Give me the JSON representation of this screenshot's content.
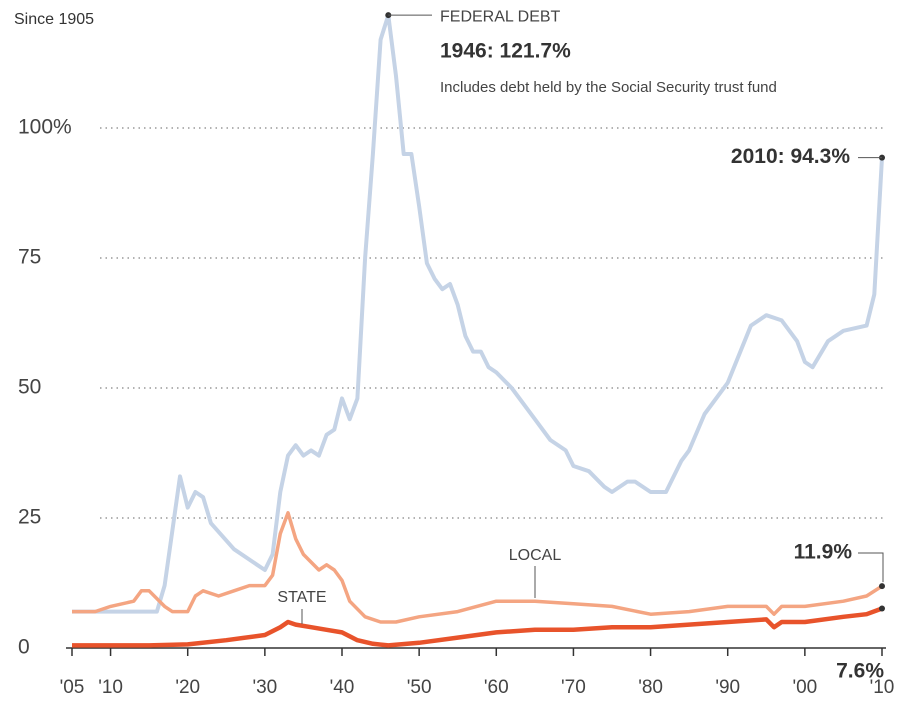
{
  "chart_data": {
    "type": "line",
    "subtitle": "Since 1905",
    "xticks": [
      {
        "value": 1905,
        "label": "'05"
      },
      {
        "value": 1910,
        "label": "'10"
      },
      {
        "value": 1920,
        "label": "'20"
      },
      {
        "value": 1930,
        "label": "'30"
      },
      {
        "value": 1940,
        "label": "'40"
      },
      {
        "value": 1950,
        "label": "'50"
      },
      {
        "value": 1960,
        "label": "'60"
      },
      {
        "value": 1970,
        "label": "'70"
      },
      {
        "value": 1980,
        "label": "'80"
      },
      {
        "value": 1990,
        "label": "'90"
      },
      {
        "value": 2000,
        "label": "'00"
      },
      {
        "value": 2010,
        "label": "'10"
      }
    ],
    "xlim": [
      1905,
      2010
    ],
    "ylim": [
      0,
      122
    ],
    "yticks": [
      0,
      25,
      50,
      75,
      {
        "value": 100,
        "label": "100%"
      }
    ],
    "grid": true,
    "series": [
      {
        "name": "FEDERAL DEBT",
        "color": "#c5d3e6",
        "x": [
          1905,
          1910,
          1916,
          1917,
          1919,
          1920,
          1921,
          1922,
          1923,
          1926,
          1929,
          1930,
          1931,
          1932,
          1933,
          1934,
          1935,
          1936,
          1937,
          1938,
          1939,
          1940,
          1941,
          1942,
          1943,
          1944,
          1945,
          1946,
          1947,
          1948,
          1949,
          1950,
          1951,
          1952,
          1953,
          1954,
          1955,
          1956,
          1957,
          1958,
          1959,
          1960,
          1962,
          1965,
          1967,
          1969,
          1970,
          1972,
          1974,
          1975,
          1977,
          1978,
          1980,
          1982,
          1984,
          1985,
          1987,
          1990,
          1993,
          1995,
          1997,
          1999,
          2000,
          2001,
          2003,
          2005,
          2008,
          2009,
          2010
        ],
        "values": [
          7,
          7,
          7,
          12,
          33,
          27,
          30,
          29,
          24,
          19,
          16,
          15,
          18,
          30,
          37,
          39,
          37,
          38,
          37,
          41,
          42,
          48,
          44,
          48,
          75,
          95,
          117,
          121.7,
          110,
          95,
          95,
          85,
          74,
          71,
          69,
          70,
          66,
          60,
          57,
          57,
          54,
          53,
          50,
          44,
          40,
          38,
          35,
          34,
          31,
          30,
          32,
          32,
          30,
          30,
          36,
          38,
          45,
          51,
          62,
          64,
          63,
          59,
          55,
          54,
          59,
          61,
          62,
          68,
          94.3
        ]
      },
      {
        "name": "LOCAL",
        "color": "#f4a582",
        "x": [
          1905,
          1908,
          1910,
          1913,
          1914,
          1915,
          1917,
          1918,
          1920,
          1921,
          1922,
          1924,
          1926,
          1928,
          1930,
          1931,
          1932,
          1933,
          1934,
          1935,
          1937,
          1938,
          1939,
          1940,
          1941,
          1943,
          1945,
          1947,
          1950,
          1955,
          1960,
          1965,
          1970,
          1975,
          1980,
          1985,
          1990,
          1995,
          1996,
          1997,
          2000,
          2005,
          2008,
          2010
        ],
        "values": [
          7,
          7,
          8,
          9,
          11,
          11,
          8,
          7,
          7,
          10,
          11,
          10,
          11,
          12,
          12,
          14,
          22,
          26,
          21,
          18,
          15,
          16,
          15,
          13,
          9,
          6,
          5,
          5,
          6,
          7,
          9,
          9,
          8.5,
          8,
          6.5,
          7,
          8,
          8,
          6.5,
          8,
          8,
          9,
          10,
          11.9
        ]
      },
      {
        "name": "STATE",
        "color": "#e8532b",
        "x": [
          1905,
          1915,
          1920,
          1925,
          1930,
          1932,
          1933,
          1934,
          1936,
          1938,
          1940,
          1942,
          1944,
          1946,
          1950,
          1955,
          1960,
          1965,
          1970,
          1975,
          1980,
          1985,
          1990,
          1995,
          1996,
          1997,
          2000,
          2005,
          2008,
          2010
        ],
        "values": [
          0.5,
          0.5,
          0.7,
          1.5,
          2.5,
          4,
          5,
          4.5,
          4,
          3.5,
          3,
          1.5,
          0.8,
          0.5,
          1,
          2,
          3,
          3.5,
          3.5,
          4,
          4,
          4.5,
          5,
          5.5,
          4,
          5,
          5,
          6,
          6.5,
          7.6
        ]
      }
    ],
    "annotations": [
      "1946: 121.7%",
      "Includes debt held by the Social Security trust fund",
      "2010: 94.3%",
      "11.9%",
      "7.6%"
    ]
  }
}
